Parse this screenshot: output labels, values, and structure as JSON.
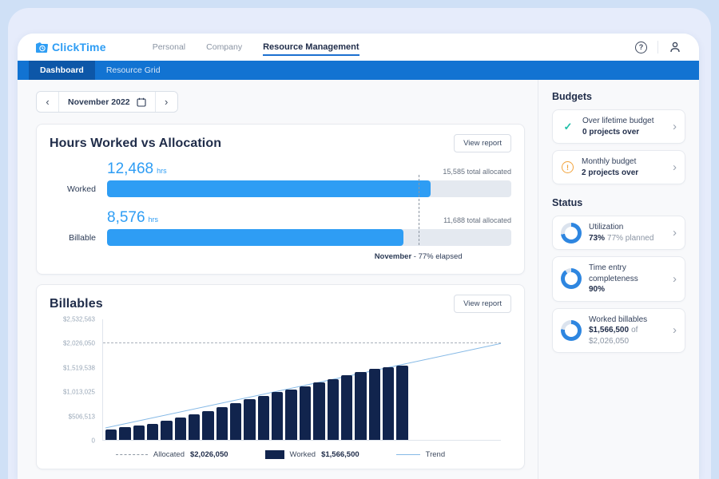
{
  "app": {
    "logo_text": "ClickTime",
    "nav": {
      "personal": "Personal",
      "company": "Company",
      "resource_management": "Resource Management"
    }
  },
  "subnav": {
    "dashboard": "Dashboard",
    "resource_grid": "Resource Grid"
  },
  "date_picker": {
    "label": "November 2022"
  },
  "hours_card": {
    "title": "Hours Worked vs Allocation",
    "view_report": "View report",
    "rows": [
      {
        "label": "Worked",
        "value": "12,468",
        "unit": "hrs",
        "allocated": "15,585 total allocated"
      },
      {
        "label": "Billable",
        "value": "8,576",
        "unit": "hrs",
        "allocated": "11,688 total allocated"
      }
    ],
    "elapsed": {
      "month": "November",
      "rest": " - 77% elapsed"
    }
  },
  "billables_card": {
    "title": "Billables",
    "view_report": "View report"
  },
  "sidebar": {
    "budgets_heading": "Budgets",
    "budgets": [
      {
        "icon": "check-icon",
        "title": "Over lifetime budget",
        "subtitle": "0 projects over"
      },
      {
        "icon": "warning-icon",
        "title": "Monthly budget",
        "subtitle": "2 projects over"
      }
    ],
    "status_heading": "Status",
    "status": [
      {
        "pct": 73,
        "title": "Utilization",
        "value": "73%",
        "extra": "77% planned"
      },
      {
        "pct": 90,
        "title": "Time entry completeness",
        "value": "90%",
        "extra": ""
      },
      {
        "pct": 77,
        "title": "Worked billables",
        "value": "$1,566,500",
        "extra": "of $2,026,050"
      }
    ]
  },
  "colors": {
    "accent_blue": "#2e9df4",
    "navbar_blue": "#1273d2",
    "active_tab_blue": "#0d57a8",
    "bar_navy": "#11244d",
    "trend_blue": "#85b9e6",
    "check_teal": "#1fbfa8",
    "warning_orange": "#f2a33c",
    "donut_blue": "#2e86e0"
  },
  "chart_data": [
    {
      "id": "hours-worked-vs-allocation",
      "type": "bar",
      "orientation": "horizontal",
      "title": "Hours Worked vs Allocation",
      "series": [
        {
          "name": "Worked",
          "value": 12468,
          "unit": "hrs",
          "total_allocated": 15585
        },
        {
          "name": "Billable",
          "value": 8576,
          "unit": "hrs",
          "total_allocated": 11688
        }
      ],
      "annotation": {
        "label": "November - 77% elapsed",
        "elapsed_pct": 77
      }
    },
    {
      "id": "billables",
      "type": "bar",
      "title": "Billables",
      "ylim": [
        0,
        2532563
      ],
      "ylabel_ticks": [
        "$2,532,563",
        "$2,026,050",
        "$1,519,538",
        "$1,013,025",
        "$506,513",
        "0"
      ],
      "allocated": 2026050,
      "worked_total": 1566500,
      "values": [
        225000,
        260000,
        300000,
        330000,
        400000,
        470000,
        540000,
        610000,
        690000,
        770000,
        850000,
        930000,
        1000000,
        1060000,
        1120000,
        1200000,
        1280000,
        1360000,
        1430000,
        1490000,
        1535000,
        1566500
      ],
      "trend": {
        "start_value": 225000,
        "end_value": 2026050
      },
      "legend": [
        {
          "swatch": "dashed-line",
          "label": "Allocated",
          "value": "$2,026,050"
        },
        {
          "swatch": "filled-bar",
          "label": "Worked",
          "value": "$1,566,500"
        },
        {
          "swatch": "line",
          "label": "Trend",
          "value": ""
        }
      ],
      "grid": false,
      "legend_position": "bottom"
    }
  ]
}
